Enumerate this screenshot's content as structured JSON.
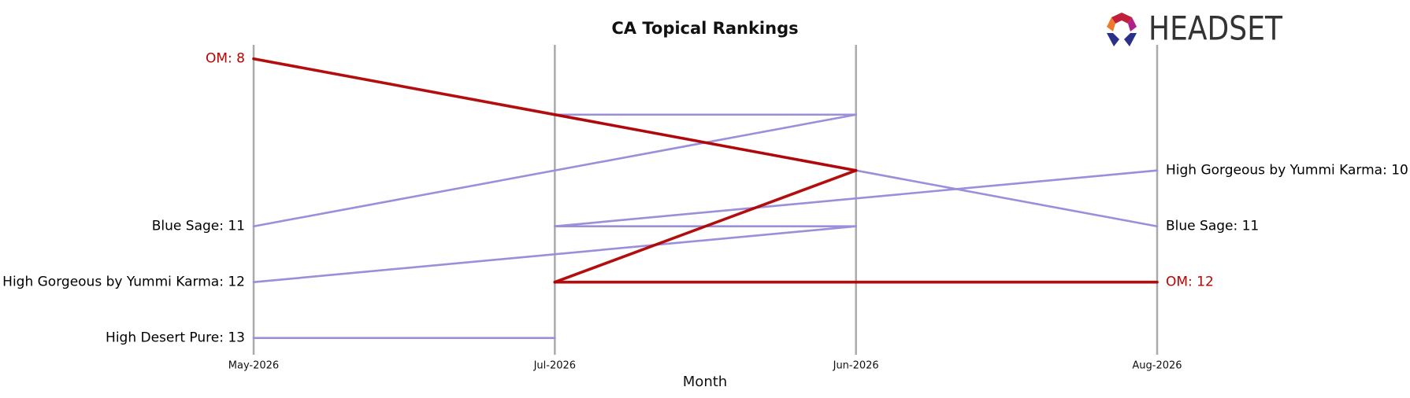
{
  "logo": "HEADSET",
  "chart_data": {
    "type": "bump",
    "title": "CA Topical Rankings",
    "x_label": "Month",
    "categories": [
      "May-2026",
      "Jul-2026",
      "Jun-2026",
      "Aug-2026"
    ],
    "ylim": [
      7.75,
      13.3
    ],
    "y_inverted": true,
    "series": [
      {
        "name": "High Desert Pure",
        "color": "#9b8edb",
        "label_color": "#000000",
        "values": [
          13,
          13,
          null,
          null
        ],
        "value_labels": [
          "High Desert Pure: 13",
          null,
          null,
          null
        ]
      },
      {
        "name": "High Gorgeous by Yummi Karma",
        "color": "#9b8edb",
        "label_color": "#000000",
        "values": [
          12,
          11,
          11,
          10
        ],
        "value_labels": [
          "High Gorgeous by Yummi Karma: 12",
          null,
          null,
          "High Gorgeous by Yummi Karma: 10"
        ]
      },
      {
        "name": "Blue Sage",
        "color": "#9b8edb",
        "label_color": "#000000",
        "values": [
          11,
          9,
          9,
          11
        ],
        "value_labels": [
          "Blue Sage: 11",
          null,
          null,
          "Blue Sage: 11"
        ]
      },
      {
        "name": "OM",
        "color": "#b00000",
        "label_color": "#c00000",
        "highlight": true,
        "values": [
          8,
          12,
          10,
          12
        ],
        "value_labels": [
          "OM: 8",
          null,
          null,
          "OM: 12"
        ]
      }
    ]
  }
}
